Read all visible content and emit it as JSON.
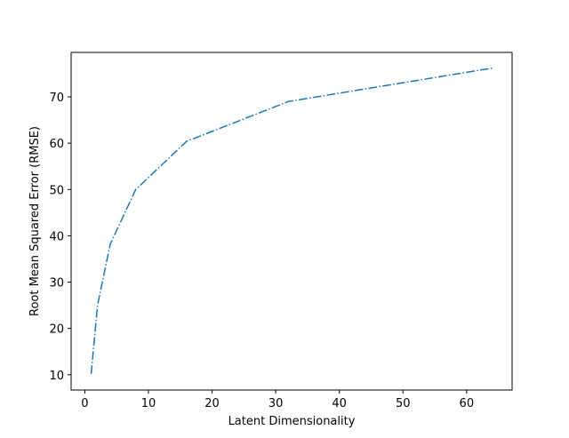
{
  "chart_data": {
    "type": "line",
    "title": "",
    "xlabel": "Latent Dimensionality",
    "ylabel": "Root Mean Squared Error (RMSE)",
    "xlim": [
      -2.15,
      67.15
    ],
    "ylim": [
      6.7,
      79.6
    ],
    "xticks": [
      0,
      10,
      20,
      30,
      40,
      50,
      60
    ],
    "yticks": [
      10,
      20,
      30,
      40,
      50,
      60,
      70
    ],
    "grid": false,
    "series": [
      {
        "x": [
          1,
          2,
          4,
          8,
          16,
          32,
          64
        ],
        "values": [
          10.2,
          25.0,
          38.2,
          50.0,
          60.4,
          69.0,
          76.2
        ],
        "color": "#1f77b4",
        "line_style": "dashdot"
      }
    ]
  }
}
